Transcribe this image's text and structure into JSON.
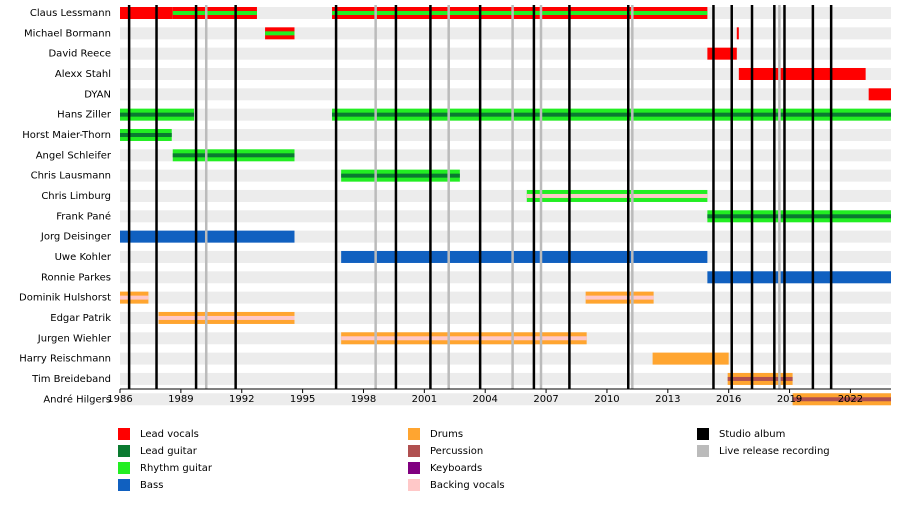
{
  "chart_data": {
    "type": "timeline",
    "xlim": [
      1986,
      2024
    ],
    "xticks": [
      1986,
      1989,
      1992,
      1995,
      1998,
      2001,
      2004,
      2007,
      2010,
      2013,
      2016,
      2019,
      2022
    ],
    "roles": [
      {
        "name": "Lead vocals",
        "color": "#ff0000"
      },
      {
        "name": "Lead guitar",
        "color": "#0a7a30"
      },
      {
        "name": "Rhythm guitar",
        "color": "#22ee22"
      },
      {
        "name": "Bass",
        "color": "#1060c0"
      },
      {
        "name": "Drums",
        "color": "#ffa530"
      },
      {
        "name": "Percussion",
        "color": "#b05050"
      },
      {
        "name": "Keyboards",
        "color": "#800080"
      },
      {
        "name": "Backing vocals",
        "color": "#ffc8c8"
      }
    ],
    "events": [
      {
        "name": "Studio album",
        "color": "#000000",
        "x": [
          1986.45,
          1987.8,
          1989.75,
          1991.7,
          1996.65,
          1999.6,
          2001.3,
          2003.75,
          2006.4,
          2008.15,
          2011.05,
          2015.25,
          2016.15,
          2017.15,
          2018.25,
          2018.75,
          2020.15,
          2021.05
        ]
      },
      {
        "name": "Live release recording",
        "color": "#bbbbbb",
        "x": [
          1990.25,
          1998.6,
          2002.2,
          2005.35,
          2006.75,
          2011.25,
          2018.5
        ]
      }
    ],
    "members": [
      {
        "name": "Claus Lessmann",
        "periods": [
          {
            "start": 1986,
            "end": 1988.6,
            "roles": [
              "Lead vocals"
            ]
          },
          {
            "start": 1988.6,
            "end": 1992.75,
            "roles": [
              "Lead vocals",
              "Rhythm guitar"
            ]
          },
          {
            "start": 1996.45,
            "end": 2014.95,
            "roles": [
              "Lead vocals",
              "Rhythm guitar"
            ]
          }
        ]
      },
      {
        "name": "Michael Bormann",
        "periods": [
          {
            "start": 1993.15,
            "end": 1994.6,
            "roles": [
              "Lead vocals",
              "Rhythm guitar"
            ]
          },
          {
            "start": 2016.4,
            "end": 2016.5,
            "roles": [
              "Lead vocals"
            ]
          }
        ]
      },
      {
        "name": "David Reece",
        "periods": [
          {
            "start": 2014.95,
            "end": 2016.4,
            "roles": [
              "Lead vocals"
            ]
          }
        ]
      },
      {
        "name": "Alexx Stahl",
        "periods": [
          {
            "start": 2016.5,
            "end": 2022.75,
            "roles": [
              "Lead vocals"
            ]
          }
        ]
      },
      {
        "name": "DYAN",
        "periods": [
          {
            "start": 2022.9,
            "end": 2024,
            "roles": [
              "Lead vocals"
            ]
          }
        ]
      },
      {
        "name": "Hans Ziller",
        "periods": [
          {
            "start": 1986,
            "end": 1989.65,
            "roles": [
              "Rhythm guitar",
              "Lead guitar"
            ]
          },
          {
            "start": 1996.45,
            "end": 2024,
            "roles": [
              "Rhythm guitar",
              "Lead guitar"
            ]
          }
        ]
      },
      {
        "name": "Horst Maier-Thorn",
        "periods": [
          {
            "start": 1986,
            "end": 1988.55,
            "roles": [
              "Rhythm guitar",
              "Lead guitar"
            ]
          }
        ]
      },
      {
        "name": "Angel Schleifer",
        "periods": [
          {
            "start": 1988.6,
            "end": 1994.6,
            "roles": [
              "Rhythm guitar",
              "Lead guitar"
            ]
          }
        ]
      },
      {
        "name": "Chris Lausmann",
        "periods": [
          {
            "start": 1996.9,
            "end": 2002.75,
            "roles": [
              "Rhythm guitar",
              "Lead guitar"
            ]
          }
        ]
      },
      {
        "name": "Chris Limburg",
        "periods": [
          {
            "start": 2006.05,
            "end": 2014.95,
            "roles": [
              "Rhythm guitar",
              "Backing vocals"
            ]
          }
        ]
      },
      {
        "name": "Frank Pané",
        "periods": [
          {
            "start": 2014.95,
            "end": 2024,
            "roles": [
              "Rhythm guitar",
              "Lead guitar"
            ]
          }
        ]
      },
      {
        "name": "Jorg Deisinger",
        "periods": [
          {
            "start": 1986,
            "end": 1994.6,
            "roles": [
              "Bass"
            ]
          }
        ]
      },
      {
        "name": "Uwe Kohler",
        "periods": [
          {
            "start": 1996.9,
            "end": 2014.95,
            "roles": [
              "Bass"
            ]
          }
        ]
      },
      {
        "name": "Ronnie Parkes",
        "periods": [
          {
            "start": 2014.95,
            "end": 2024,
            "roles": [
              "Bass"
            ]
          }
        ]
      },
      {
        "name": "Dominik Hulshorst",
        "periods": [
          {
            "start": 1986,
            "end": 1987.4,
            "roles": [
              "Drums",
              "Backing vocals"
            ]
          },
          {
            "start": 2008.95,
            "end": 2012.3,
            "roles": [
              "Drums",
              "Backing vocals"
            ]
          }
        ]
      },
      {
        "name": "Edgar Patrik",
        "periods": [
          {
            "start": 1987.9,
            "end": 1994.6,
            "roles": [
              "Drums",
              "Backing vocals"
            ]
          }
        ]
      },
      {
        "name": "Jurgen Wiehler",
        "periods": [
          {
            "start": 1996.9,
            "end": 2009.0,
            "roles": [
              "Drums",
              "Backing vocals"
            ]
          }
        ]
      },
      {
        "name": "Harry Reischmann",
        "periods": [
          {
            "start": 2012.25,
            "end": 2016.0,
            "roles": [
              "Drums"
            ]
          }
        ]
      },
      {
        "name": "Tim Breideband",
        "periods": [
          {
            "start": 2015.95,
            "end": 2019.15,
            "roles": [
              "Drums",
              "Percussion"
            ]
          }
        ]
      },
      {
        "name": "André Hilgers",
        "periods": [
          {
            "start": 2019.15,
            "end": 2024,
            "roles": [
              "Drums",
              "Percussion"
            ]
          }
        ]
      }
    ]
  }
}
